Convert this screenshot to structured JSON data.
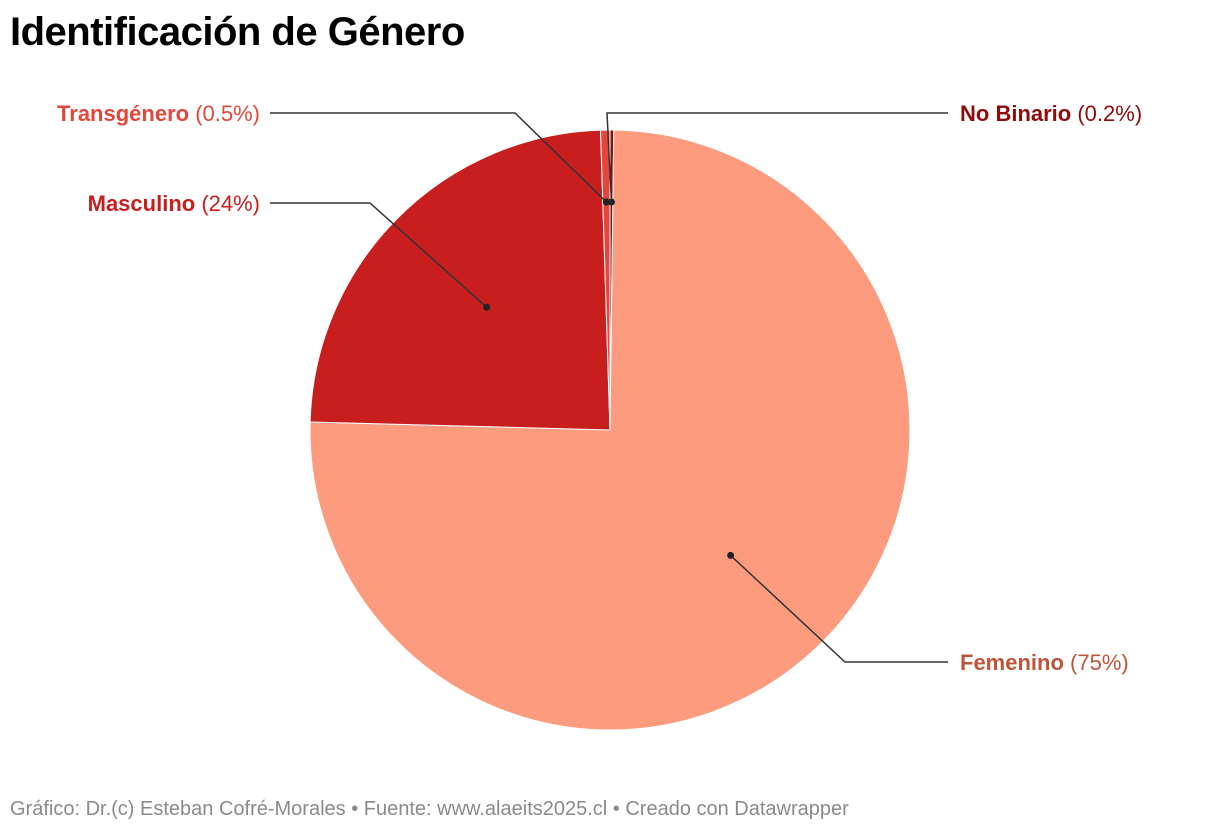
{
  "title": "Identificación de Género",
  "footer": "Gráfico: Dr.(c) Esteban Cofré-Morales • Fuente: www.alaeits2025.cl • Creado con Datawrapper",
  "chart_data": {
    "type": "pie",
    "slices": [
      {
        "name": "Femenino",
        "value": 75,
        "label_value": "(75%)",
        "color": "#FC9B7D",
        "label_color": "#C0543B"
      },
      {
        "name": "Masculino",
        "value": 24,
        "label_value": "(24%)",
        "color": "#C81E1E",
        "label_color": "#C81E1E"
      },
      {
        "name": "Transgénero",
        "value": 0.5,
        "label_value": "(0.5%)",
        "color": "#E2463C",
        "label_color": "#E2463C"
      },
      {
        "name": "No Binario",
        "value": 0.2,
        "label_value": "(0.2%)",
        "color": "#8E0C0C",
        "label_color": "#8E0C0C"
      }
    ],
    "start": "12 o'clock, counter-clockwise for Masculino/Transgénero, clockwise for Femenino",
    "legend": "direct labels with leader lines"
  }
}
